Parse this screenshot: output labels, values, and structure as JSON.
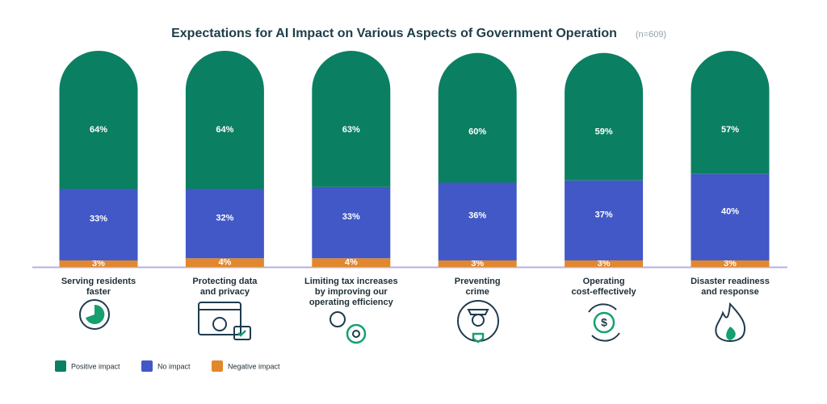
{
  "chart_data": {
    "type": "stacked-bar",
    "title": "Expectations for AI Impact on Various Aspects of Government Operation",
    "subtitle": "(n=609)",
    "categories": [
      [
        "Serving residents",
        "faster"
      ],
      [
        "Protecting data",
        "and privacy"
      ],
      [
        "Limiting tax increases",
        "by improving our",
        "operating efficiency"
      ],
      [
        "Preventing",
        "crime"
      ],
      [
        "Operating",
        "cost-effectively"
      ],
      [
        "Disaster readiness",
        "and response"
      ]
    ],
    "series": [
      {
        "name": "Positive impact",
        "color": "#0b7f62",
        "values": [
          64,
          64,
          63,
          60,
          59,
          57
        ],
        "value_labels": [
          "64%",
          "64%",
          "63%",
          "60%",
          "59%",
          "57%"
        ]
      },
      {
        "name": "No impact",
        "color": "#4158c6",
        "values": [
          33,
          32,
          33,
          36,
          37,
          40
        ],
        "value_labels": [
          "33%",
          "32%",
          "33%",
          "36%",
          "37%",
          "40%"
        ]
      },
      {
        "name": "Negative impact",
        "color": "#e2882c",
        "values": [
          3,
          4,
          4,
          3,
          3,
          3
        ],
        "value_labels": [
          "3%",
          "4%",
          "4%",
          "3%",
          "3%",
          "3%"
        ]
      }
    ],
    "ylim": [
      0,
      100
    ],
    "legend": "bottom-left"
  }
}
